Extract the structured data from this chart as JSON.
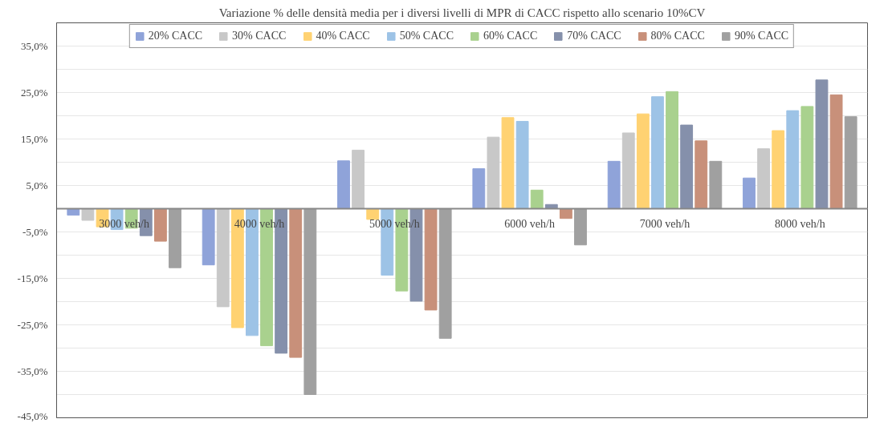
{
  "chart_data": {
    "type": "bar",
    "title": "Variazione % delle densità media per i diversi livelli di MPR di CACC rispetto allo scenario 10%CV",
    "categories": [
      "3000 veh/h",
      "4000 veh/h",
      "5000 veh/h",
      "6000 veh/h",
      "7000 veh/h",
      "8000 veh/h"
    ],
    "series": [
      {
        "name": "20% CACC",
        "color": "#8fa3d9",
        "values": [
          -1.4,
          -12.1,
          10.3,
          8.6,
          10.2,
          6.6
        ]
      },
      {
        "name": "30% CACC",
        "color": "#c8c8c8",
        "values": [
          -2.5,
          -21.1,
          12.6,
          15.4,
          16.3,
          12.9
        ]
      },
      {
        "name": "40% CACC",
        "color": "#ffd272",
        "values": [
          -3.9,
          -25.6,
          -2.3,
          19.6,
          20.4,
          16.8
        ]
      },
      {
        "name": "50% CACC",
        "color": "#9dc3e6",
        "values": [
          -4.5,
          -27.3,
          -14.3,
          18.8,
          24.1,
          21.1
        ]
      },
      {
        "name": "60% CACC",
        "color": "#a9d18e",
        "values": [
          -4.2,
          -29.5,
          -17.7,
          4.0,
          25.2,
          22.0
        ]
      },
      {
        "name": "70% CACC",
        "color": "#8590ab",
        "values": [
          -5.8,
          -31.1,
          -19.9,
          0.9,
          18.0,
          27.7
        ]
      },
      {
        "name": "80% CACC",
        "color": "#c8907a",
        "values": [
          -7.0,
          -32.0,
          -21.8,
          -2.1,
          14.6,
          24.5
        ]
      },
      {
        "name": "90% CACC",
        "color": "#a0a0a0",
        "values": [
          -12.7,
          -40.0,
          -27.9,
          -7.8,
          10.2,
          19.8
        ]
      }
    ],
    "ylim": [
      -45,
      40
    ],
    "yticks": [
      {
        "value": -45,
        "label": "-45,0%"
      },
      {
        "value": -40,
        "label": null
      },
      {
        "value": -35,
        "label": "-35,0%"
      },
      {
        "value": -30,
        "label": null
      },
      {
        "value": -25,
        "label": "-25,0%"
      },
      {
        "value": -20,
        "label": null
      },
      {
        "value": -15,
        "label": "-15,0%"
      },
      {
        "value": -10,
        "label": null
      },
      {
        "value": -5,
        "label": "-5,0%"
      },
      {
        "value": 0,
        "label": null
      },
      {
        "value": 5,
        "label": "5,0%"
      },
      {
        "value": 10,
        "label": null
      },
      {
        "value": 15,
        "label": "15,0%"
      },
      {
        "value": 20,
        "label": null
      },
      {
        "value": 25,
        "label": "25,0%"
      },
      {
        "value": 30,
        "label": null
      },
      {
        "value": 35,
        "label": "35,0%"
      },
      {
        "value": 40,
        "label": null
      }
    ],
    "grid": "y",
    "legend": "top"
  }
}
